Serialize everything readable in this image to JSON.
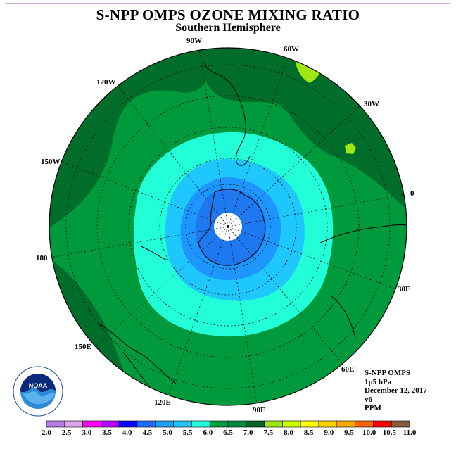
{
  "title": "S-NPP OMPS OZONE MIXING RATIO",
  "subtitle": "Southern Hemisphere",
  "longitude_labels": [
    "90W",
    "60W",
    "30W",
    "0",
    "30E",
    "60E",
    "90E",
    "120E",
    "150E",
    "180",
    "150W",
    "120W"
  ],
  "info": {
    "instrument": "S-NPP OMPS",
    "level": "1p5 hPa",
    "date": "December 12, 2017",
    "version": "v6",
    "units": "PPM"
  },
  "logo_text": "NOAA",
  "colorbar": {
    "ticks": [
      "2.0",
      "2.5",
      "3.0",
      "3.5",
      "4.0",
      "4.5",
      "5.0",
      "5.5",
      "6.0",
      "6.5",
      "7.0",
      "7.5",
      "8.0",
      "8.5",
      "9.0",
      "9.5",
      "10.0",
      "10.5",
      "11.0"
    ],
    "colors": [
      "#b57ee6",
      "#d9a6f0",
      "#ff00ff",
      "#b400ff",
      "#0000ff",
      "#1e6eff",
      "#1ea0ff",
      "#1ec8ff",
      "#22ffd8",
      "#00a040",
      "#008c3c",
      "#006428",
      "#a0e614",
      "#d2ff00",
      "#ffff00",
      "#ffd200",
      "#ffaa00",
      "#ff6400",
      "#ff0000",
      "#8c5a3c"
    ]
  }
}
